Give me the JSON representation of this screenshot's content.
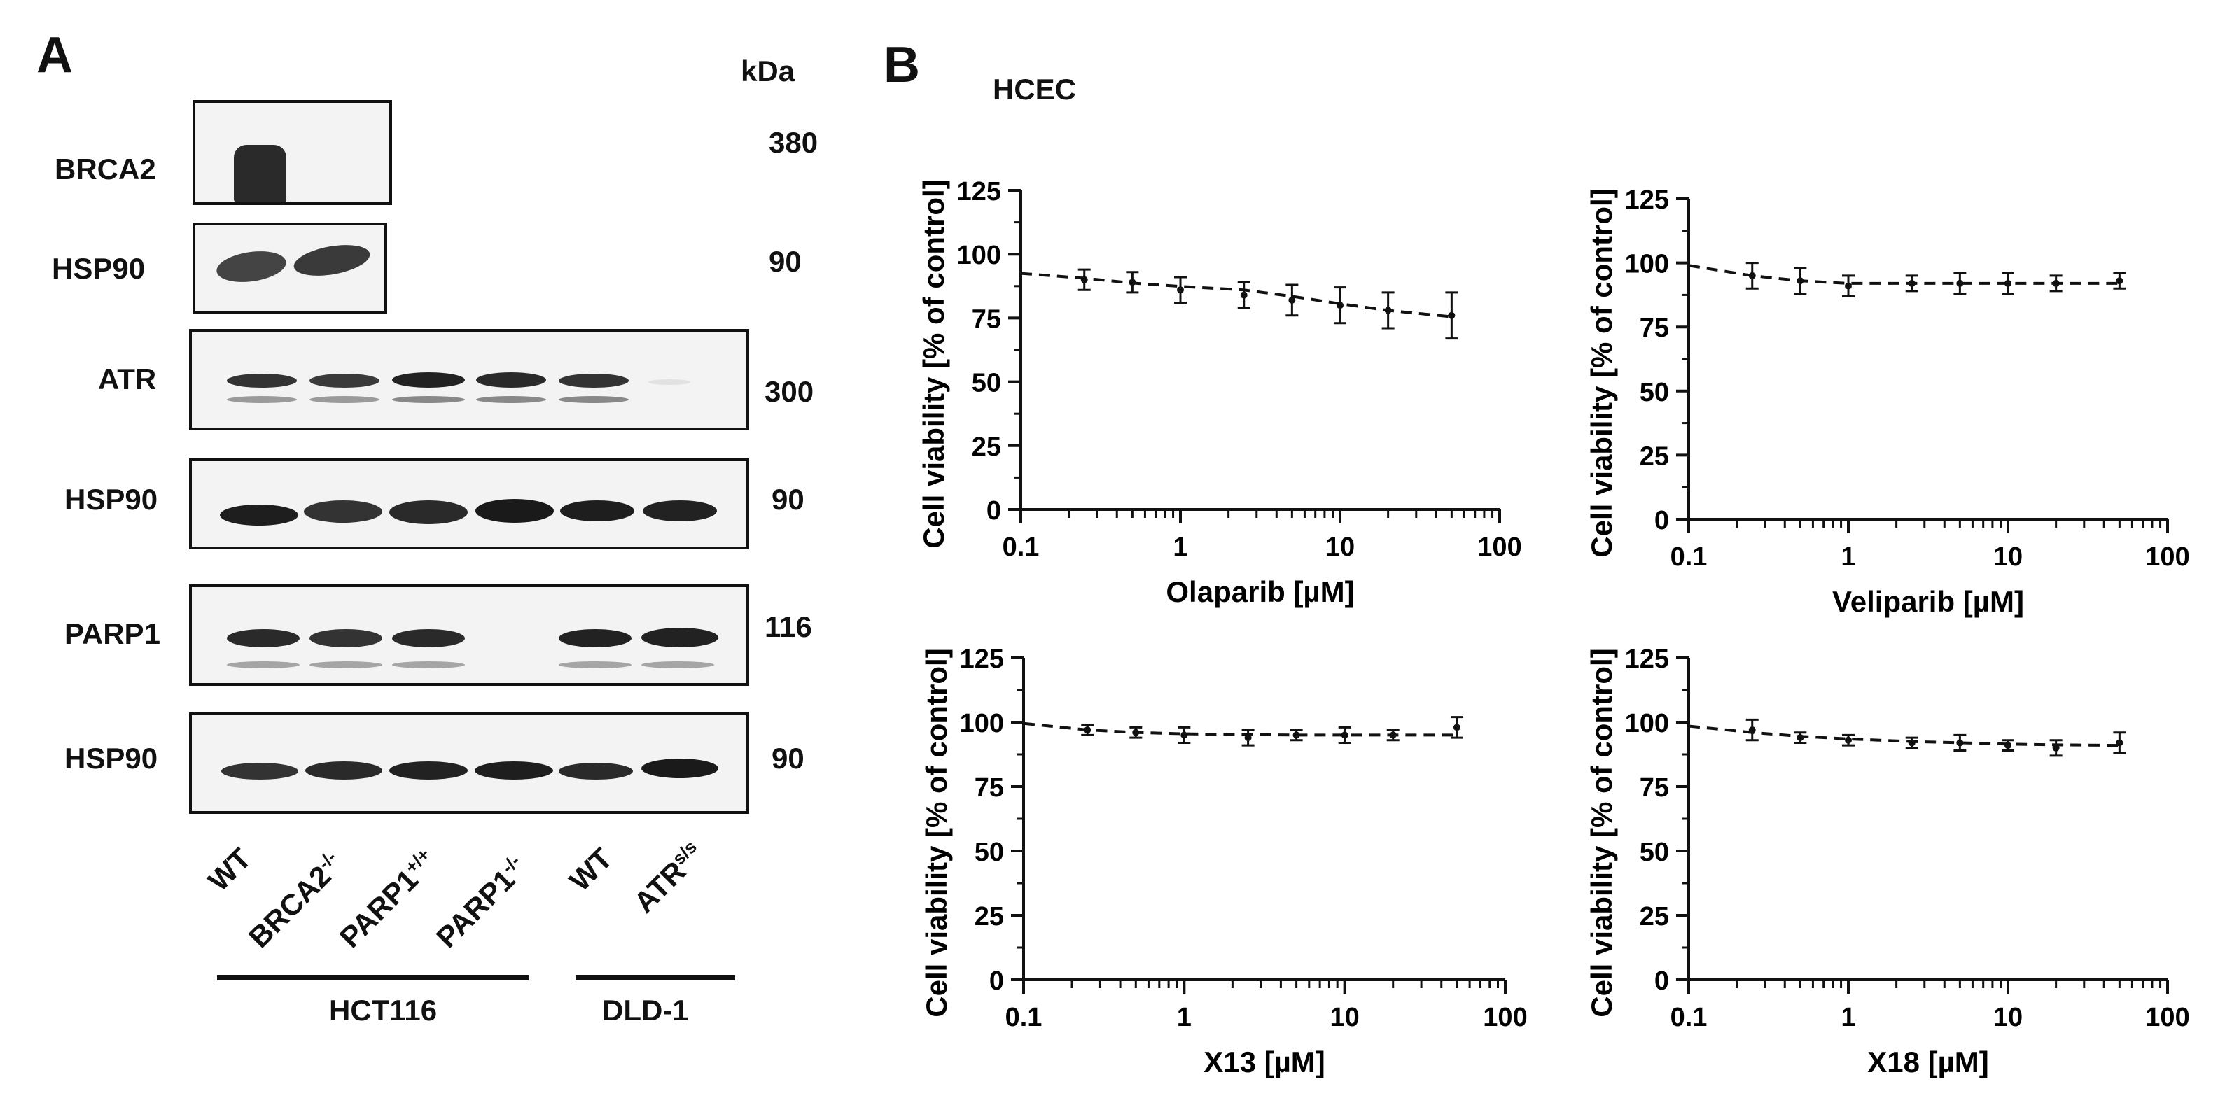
{
  "panelA": {
    "label": "A",
    "kda_header": "kDa",
    "rows": [
      {
        "protein": "BRCA2",
        "kda": "380"
      },
      {
        "protein": "HSP90",
        "kda": "90"
      },
      {
        "protein": "ATR",
        "kda": "300"
      },
      {
        "protein": "HSP90",
        "kda": "90"
      },
      {
        "protein": "PARP1",
        "kda": "116"
      },
      {
        "protein": "HSP90",
        "kda": "90"
      }
    ],
    "lanes": [
      {
        "name": "WT",
        "sup": ""
      },
      {
        "name": "BRCA2",
        "sup": "-/-"
      },
      {
        "name": "PARP1",
        "sup": "+/+"
      },
      {
        "name": "PARP1",
        "sup": "-/-"
      },
      {
        "name": "WT",
        "sup": ""
      },
      {
        "name": "ATR",
        "sup": "s/s"
      }
    ],
    "cell_lines": [
      "HCT116",
      "DLD-1"
    ]
  },
  "panelB": {
    "label": "B",
    "subtitle": "HCEC"
  },
  "chart_data": [
    {
      "type": "line",
      "title": "",
      "xlabel": "Olaparib [µM]",
      "ylabel": "Cell viability [% of control]",
      "xscale": "log",
      "xlim": [
        0.1,
        100
      ],
      "ylim": [
        0,
        125
      ],
      "xticks": [
        "0.1",
        "1",
        "10",
        "100"
      ],
      "yticks": [
        "0",
        "25",
        "50",
        "75",
        "100",
        "125"
      ],
      "x": [
        0.25,
        0.5,
        1,
        2.5,
        5,
        10,
        20,
        50
      ],
      "y": [
        90,
        89,
        86,
        84,
        82,
        80,
        78,
        76
      ],
      "err": [
        4,
        4,
        5,
        5,
        6,
        7,
        7,
        9
      ],
      "fit_y_at": [
        92.5,
        90.6,
        88.7,
        87.4,
        86.0,
        83.5,
        80.6,
        78.0,
        75.5
      ],
      "fit_x_at": [
        0.1,
        0.25,
        0.5,
        1,
        2.5,
        5,
        10,
        20,
        50
      ]
    },
    {
      "type": "line",
      "title": "",
      "xlabel": "Veliparib [µM]",
      "ylabel": "Cell viability [% of control]",
      "xscale": "log",
      "xlim": [
        0.1,
        100
      ],
      "ylim": [
        0,
        125
      ],
      "xticks": [
        "0.1",
        "1",
        "10",
        "100"
      ],
      "yticks": [
        "0",
        "25",
        "50",
        "75",
        "100",
        "125"
      ],
      "x": [
        0.25,
        0.5,
        1,
        2.5,
        5,
        10,
        20,
        50
      ],
      "y": [
        95,
        93,
        91,
        92,
        92,
        92,
        92,
        93
      ],
      "err": [
        5,
        5,
        4,
        3,
        4,
        4,
        3,
        3
      ],
      "fit_y_at": [
        99,
        95,
        93,
        92,
        92,
        92,
        92,
        92,
        92
      ],
      "fit_x_at": [
        0.1,
        0.25,
        0.5,
        1,
        2.5,
        5,
        10,
        20,
        50
      ]
    },
    {
      "type": "line",
      "title": "",
      "xlabel": "X13 [µM]",
      "ylabel": "Cell viability [% of control]",
      "xscale": "log",
      "xlim": [
        0.1,
        100
      ],
      "ylim": [
        0,
        125
      ],
      "xticks": [
        "0.1",
        "1",
        "10",
        "100"
      ],
      "yticks": [
        "0",
        "25",
        "50",
        "75",
        "100",
        "125"
      ],
      "x": [
        0.25,
        0.5,
        1,
        2.5,
        5,
        10,
        20,
        50
      ],
      "y": [
        97,
        96,
        95,
        94,
        95,
        95,
        95,
        98
      ],
      "err": [
        2,
        2,
        3,
        3,
        2,
        3,
        2,
        4
      ],
      "fit_y_at": [
        99.5,
        97,
        96,
        95.5,
        95.2,
        95,
        95,
        95,
        95
      ],
      "fit_x_at": [
        0.1,
        0.25,
        0.5,
        1,
        2.5,
        5,
        10,
        20,
        50
      ]
    },
    {
      "type": "line",
      "title": "",
      "xlabel": "X18 [µM]",
      "ylabel": "Cell viability [% of control]",
      "xscale": "log",
      "xlim": [
        0.1,
        100
      ],
      "ylim": [
        0,
        125
      ],
      "xticks": [
        "0.1",
        "1",
        "10",
        "100"
      ],
      "yticks": [
        "0",
        "25",
        "50",
        "75",
        "100",
        "125"
      ],
      "x": [
        0.25,
        0.5,
        1,
        2.5,
        5,
        10,
        20,
        50
      ],
      "y": [
        97,
        94,
        93,
        92,
        92,
        91,
        90,
        92
      ],
      "err": [
        4,
        2,
        2,
        2,
        3,
        2,
        3,
        4
      ],
      "fit_y_at": [
        98.5,
        96,
        94.5,
        93.5,
        92.5,
        92,
        91.5,
        91.2,
        91
      ],
      "fit_x_at": [
        0.1,
        0.25,
        0.5,
        1,
        2.5,
        5,
        10,
        20,
        50
      ]
    }
  ]
}
